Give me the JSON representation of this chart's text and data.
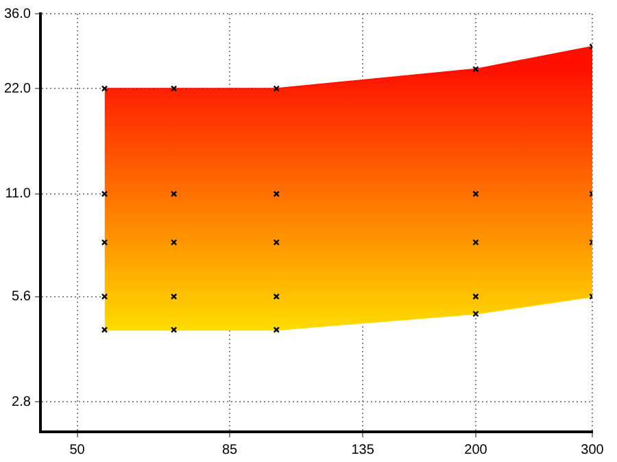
{
  "chart_data": {
    "type": "area",
    "log": "xy",
    "grid": true,
    "legend": false,
    "xlim": [
      44,
      300
    ],
    "ylim": [
      2.3,
      36
    ],
    "xticks": [
      50,
      85,
      135,
      200,
      300
    ],
    "yticks": [
      2.8,
      5.6,
      {
        "value": 11,
        "label": "11.0"
      },
      {
        "value": 22,
        "label": "22.0"
      },
      {
        "value": 36,
        "label": "36.0"
      }
    ],
    "series": [
      {
        "type": "line",
        "color": "#ffd800",
        "x": [
          55,
          100,
          200,
          300
        ],
        "values": [
          4.5,
          4.5,
          5,
          5.6
        ]
      },
      {
        "color": "#ff1000",
        "x": [
          55,
          100,
          200,
          300
        ],
        "values": [
          22,
          22,
          25,
          29
        ]
      },
      {
        "type": "scatter",
        "color": "#000000",
        "marker": "cross",
        "x": [
          55,
          55,
          55,
          55,
          55,
          70,
          70,
          70,
          70,
          70,
          100,
          100,
          100,
          100,
          100,
          200,
          200,
          200,
          200,
          200,
          300,
          300,
          300,
          300
        ],
        "values": [
          4.5,
          5.6,
          8,
          11,
          22,
          4.5,
          5.6,
          8,
          11,
          22,
          4.5,
          5.6,
          8,
          11,
          22,
          5,
          5.6,
          8,
          11,
          25,
          5.6,
          8,
          11,
          29
        ]
      }
    ]
  }
}
